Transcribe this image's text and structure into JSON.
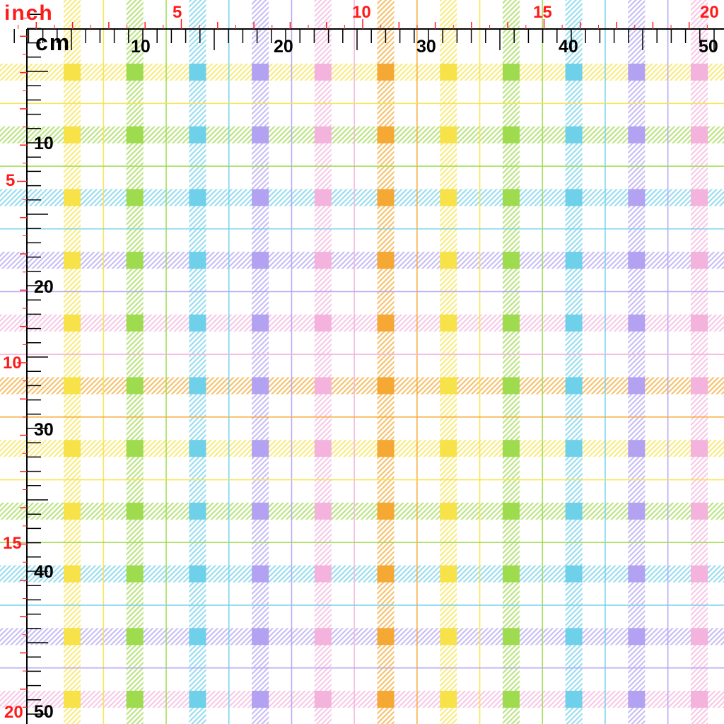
{
  "units": {
    "inch_label": "inch",
    "cm_label": "cm"
  },
  "top_inch_labels": [
    "5",
    "10",
    "15",
    "20"
  ],
  "top_cm_labels": [
    "10",
    "20",
    "30",
    "40",
    "50"
  ],
  "left_cm_labels": [
    "10",
    "20",
    "30",
    "40",
    "50"
  ],
  "left_inch_labels": [
    "5",
    "10",
    "15",
    "20"
  ],
  "colors": {
    "inch_ruler": "#ff1a1a",
    "cm_ruler": "#000000",
    "background": "#ffffff",
    "stripes": [
      "#f7e24a",
      "#9edb4f",
      "#6fd0ea",
      "#b3a2f2",
      "#f4b3dd",
      "#f5a833"
    ]
  },
  "pattern": {
    "name": "pastel plaid",
    "column_colors": [
      "yellow",
      "green",
      "blue",
      "purple",
      "pink",
      "orange",
      "yellow",
      "green",
      "blue",
      "purple",
      "pink"
    ],
    "row_colors": [
      "yellow",
      "green",
      "blue",
      "purple",
      "pink",
      "orange",
      "yellow",
      "green",
      "blue",
      "purple",
      "pink"
    ]
  }
}
